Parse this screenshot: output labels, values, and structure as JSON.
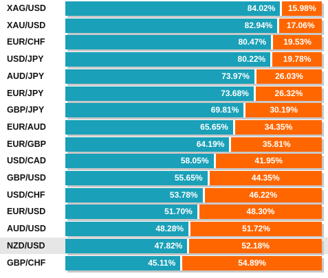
{
  "colors": {
    "long": "#1aa0b8",
    "short": "#ff6600",
    "shadow": "#c8c8c8",
    "highlight": "#e6e6e6"
  },
  "chart_data": {
    "type": "bar",
    "orientation": "horizontal",
    "stacked": true,
    "percent_stacked": true,
    "categories": [
      "XAG/USD",
      "XAU/USD",
      "EUR/CHF",
      "USD/JPY",
      "AUD/JPY",
      "EUR/JPY",
      "GBP/JPY",
      "EUR/AUD",
      "EUR/GBP",
      "USD/CAD",
      "GBP/USD",
      "USD/CHF",
      "EUR/USD",
      "AUD/USD",
      "NZD/USD",
      "GBP/CHF"
    ],
    "series": [
      {
        "values": [
          84.02,
          82.94,
          80.47,
          80.22,
          73.97,
          73.68,
          69.81,
          65.65,
          64.19,
          58.05,
          55.65,
          53.78,
          51.7,
          48.28,
          47.82,
          45.11
        ],
        "labels": [
          "84.02%",
          "82.94%",
          "80.47%",
          "80.22%",
          "73.97%",
          "73.68%",
          "69.81%",
          "65.65%",
          "64.19%",
          "58.05%",
          "55.65%",
          "53.78%",
          "51.70%",
          "48.28%",
          "47.82%",
          "45.11%"
        ]
      },
      {
        "values": [
          15.98,
          17.06,
          19.53,
          19.78,
          26.03,
          26.32,
          30.19,
          34.35,
          35.81,
          41.95,
          44.35,
          46.22,
          48.3,
          51.72,
          52.18,
          54.89
        ],
        "labels": [
          "15.98%",
          "17.06%",
          "19.53%",
          "19.78%",
          "26.03%",
          "26.32%",
          "30.19%",
          "34.35%",
          "35.81%",
          "41.95%",
          "44.35%",
          "46.22%",
          "48.30%",
          "51.72%",
          "52.18%",
          "54.89%"
        ]
      }
    ],
    "highlighted_category": "NZD/USD",
    "xlim": [
      0,
      100
    ],
    "grid": false,
    "legend": "none"
  }
}
